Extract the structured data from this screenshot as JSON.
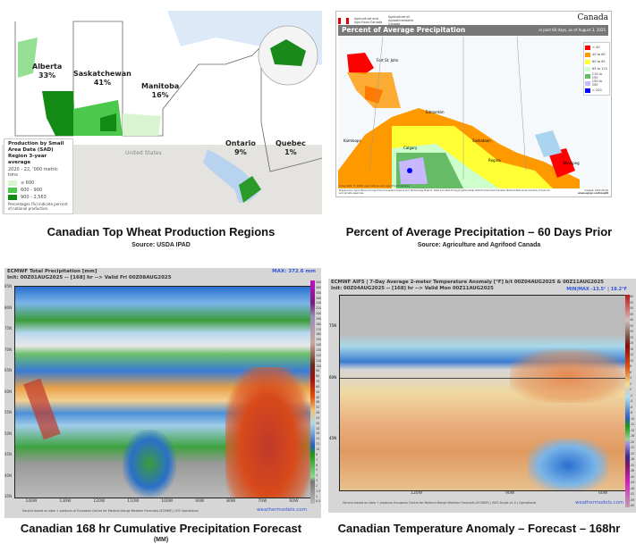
{
  "panels": [
    {
      "caption": "Canadian Top Wheat Production Regions",
      "source": "Source: USDA IPAD",
      "map": {
        "regions": [
          {
            "name": "Alberta",
            "share": "33%"
          },
          {
            "name": "Saskatchewan",
            "share": "41%"
          },
          {
            "name": "Manitoba",
            "share": "16%"
          },
          {
            "name": "Ontario",
            "share": "9%"
          },
          {
            "name": "Quebec",
            "share": "1%"
          }
        ],
        "country_label": "United States",
        "legend": {
          "title": "Production by Small Area Data (SAD) Region 3-year average",
          "subtitle": "2020 - 22, '000 metric tons",
          "items": [
            {
              "label": "≤ 600",
              "color": "#d8f5d0"
            },
            {
              "label": "600 - 900",
              "color": "#4cc94c"
            },
            {
              "label": "900 - 2,563",
              "color": "#138a13"
            }
          ],
          "note": "Percentages (%) indicate percent of national production."
        }
      }
    },
    {
      "caption": "Percent of Average Precipitation – 60 Days Prior",
      "source": "Source: Agriculture and Agrifood Canada",
      "map": {
        "agency_en": "Agriculture and Agri-Food Canada",
        "agency_fr": "Agriculture et Agroalimentaire Canada",
        "wordmark": "Canada",
        "title": "Percent of Average Precipitation",
        "subtitle": "in past 60 days, as of August 3, 2025",
        "cities": [
          "Fort St. John",
          "Edmonton",
          "Kamloops",
          "Calgary",
          "Saskatoon",
          "Regina",
          "Winnipeg"
        ],
        "legend": [
          {
            "label": "< 40",
            "color": "#ff0000"
          },
          {
            "label": "40 to 60",
            "color": "#ff9900"
          },
          {
            "label": "60 to 85",
            "color": "#ffff33"
          },
          {
            "label": "85 to 115",
            "color": "#ccffcc"
          },
          {
            "label": "115 to 150",
            "color": "#66bb66"
          },
          {
            "label": "150 to 200",
            "color": "#c8b8ff"
          },
          {
            "label": "> 200",
            "color": "#0000ff"
          }
        ],
        "copyright": "Copyright © 2025 Agriculture and Agri-Food Canada",
        "footer": "Prepared by Agriculture and Agri-Food Canada's Science and Technology Branch. Data provided through partnership with Environment Canada, Natural Resources Canada, Provincial and private agencies.",
        "created": "Created: 2025-08-04",
        "url": "www.agr.gc.ca/drought"
      }
    },
    {
      "caption": "Canadian 168 hr Cumulative Precipitation Forecast",
      "unit": "(MM)",
      "map": {
        "title": "ECMWF Total Precipitation [mm]",
        "init": "Init: 00Z01AUG2025 -- [168] hr --> Valid Fri 00Z08AUG2025",
        "max": "MAX: 372.6 mm",
        "lat_ticks": [
          "85N",
          "80N",
          "75N",
          "70N",
          "65N",
          "60N",
          "55N",
          "50N",
          "45N",
          "40N",
          "35N"
        ],
        "lon_ticks": [
          "140W",
          "130W",
          "120W",
          "110W",
          "100W",
          "90W",
          "80W",
          "70W",
          "60W"
        ],
        "colorbar_ticks": [
          "500",
          "400",
          "300",
          "260",
          "240",
          "220",
          "200",
          "190",
          "180",
          "170",
          "160",
          "150",
          "140",
          "130",
          "120",
          "110",
          "100",
          "90",
          "80",
          "70",
          "60",
          "50",
          "40",
          "36",
          "32",
          "28",
          "24",
          "20",
          "18",
          "16",
          "14",
          "12",
          "10",
          "8",
          "7",
          "6",
          "5",
          "4",
          "3",
          "2",
          "1.5",
          "1",
          "0.5"
        ],
        "footer": "Service based on data + products of European Centre for Medium-Range Weather Forecasts (ECMWF) | IFS Operational",
        "brand": "weathermodels.com"
      }
    },
    {
      "caption": "Canadian Temperature Anomaly – Forecast – 168hr",
      "map": {
        "title": "ECMWF AIFS | 7-Day Average 2-meter Temperature Anomaly [°F] b/t 00Z04AUG2025 & 00Z11AUG2025",
        "init": "Init: 00Z04AUG2025 -- [168] hr --> Valid Mon 00Z11AUG2025",
        "minmax": "MIN|MAX -13.5° | 18.2°F",
        "lat_ticks": [
          "75N",
          "60N",
          "45N"
        ],
        "lon_ticks": [
          "120W",
          "90W",
          "60W"
        ],
        "colorbar_ticks": [
          "65",
          "55",
          "50",
          "45",
          "40",
          "35",
          "30",
          "25",
          "20",
          "16",
          "12",
          "10",
          "8",
          "6",
          "4",
          "2",
          "0",
          "-2",
          "-4",
          "-6",
          "-8",
          "-10",
          "-12",
          "-14",
          "-16",
          "-20",
          "-22",
          "-25",
          "-28",
          "-32",
          "-36",
          "-40",
          "-44",
          "-48",
          "-52",
          "-56",
          "-60"
        ],
        "footer": "Service based on data + products European Centre for Medium-Range Weather Forecasts (ECMWF) | AIFS Single v1.0 | Operational",
        "brand": "weathermodels.com"
      }
    }
  ]
}
